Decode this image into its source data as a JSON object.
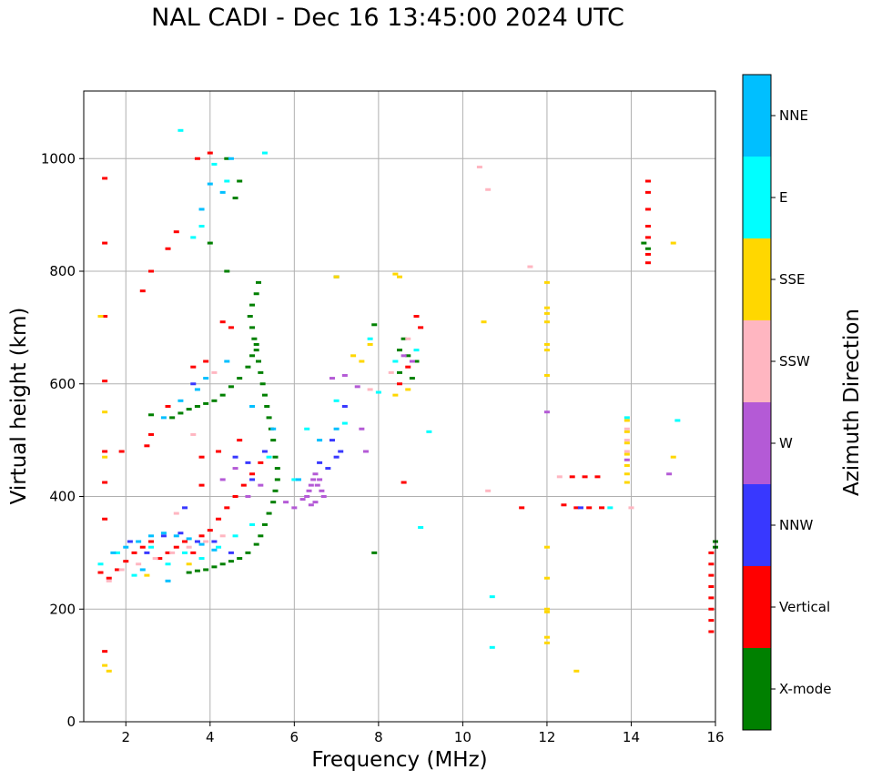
{
  "chart_data": {
    "type": "scatter",
    "title": "NAL CADI - Dec 16 13:45:00 2024 UTC",
    "xlabel": "Frequency (MHz)",
    "ylabel": "Virtual height (km)",
    "xlim": [
      1,
      16
    ],
    "ylim": [
      0,
      1120
    ],
    "xticks": [
      2,
      4,
      6,
      8,
      10,
      12,
      14,
      16
    ],
    "yticks": [
      0,
      200,
      400,
      600,
      800,
      1000
    ],
    "grid": true,
    "colorbar": {
      "label": "Azimuth Direction",
      "categories": [
        {
          "name": "X-mode",
          "color": "#008000"
        },
        {
          "name": "Vertical",
          "color": "#ff0000"
        },
        {
          "name": "NNW",
          "color": "#3838ff"
        },
        {
          "name": "W",
          "color": "#b45ad6"
        },
        {
          "name": "SSW",
          "color": "#ffb6c1"
        },
        {
          "name": "SSE",
          "color": "#ffd700"
        },
        {
          "name": "E",
          "color": "#00ffff"
        },
        {
          "name": "NNE",
          "color": "#00bfff"
        }
      ]
    },
    "series": [
      {
        "name": "X-mode",
        "color": "#008000",
        "points": [
          [
            3.5,
            265
          ],
          [
            3.7,
            268
          ],
          [
            3.9,
            270
          ],
          [
            4.1,
            275
          ],
          [
            4.3,
            280
          ],
          [
            4.5,
            285
          ],
          [
            4.7,
            290
          ],
          [
            4.9,
            300
          ],
          [
            5.1,
            315
          ],
          [
            5.2,
            330
          ],
          [
            5.3,
            350
          ],
          [
            5.4,
            370
          ],
          [
            5.5,
            390
          ],
          [
            5.55,
            410
          ],
          [
            5.6,
            430
          ],
          [
            5.6,
            450
          ],
          [
            5.55,
            470
          ],
          [
            5.5,
            500
          ],
          [
            5.45,
            520
          ],
          [
            5.4,
            540
          ],
          [
            5.35,
            560
          ],
          [
            5.3,
            580
          ],
          [
            5.25,
            600
          ],
          [
            5.2,
            620
          ],
          [
            5.15,
            640
          ],
          [
            5.1,
            660
          ],
          [
            5.05,
            680
          ],
          [
            5.0,
            700
          ],
          [
            4.95,
            720
          ],
          [
            5.0,
            740
          ],
          [
            5.1,
            760
          ],
          [
            5.15,
            780
          ],
          [
            3.1,
            540
          ],
          [
            3.3,
            548
          ],
          [
            3.5,
            555
          ],
          [
            3.7,
            560
          ],
          [
            3.9,
            565
          ],
          [
            4.1,
            570
          ],
          [
            4.3,
            580
          ],
          [
            4.5,
            595
          ],
          [
            4.7,
            610
          ],
          [
            4.9,
            630
          ],
          [
            5.0,
            650
          ],
          [
            5.1,
            670
          ],
          [
            4.6,
            930
          ],
          [
            4.7,
            960
          ],
          [
            4.4,
            1000
          ],
          [
            4.0,
            850
          ],
          [
            4.4,
            800
          ],
          [
            8.5,
            660
          ],
          [
            8.7,
            650
          ],
          [
            8.9,
            640
          ],
          [
            8.5,
            620
          ],
          [
            8.8,
            610
          ],
          [
            8.6,
            680
          ],
          [
            14.3,
            850
          ],
          [
            14.4,
            840
          ],
          [
            16,
            320
          ],
          [
            16,
            310
          ],
          [
            7.0,
            790
          ],
          [
            7.9,
            705
          ],
          [
            7.9,
            300
          ],
          [
            2.6,
            545
          ]
        ]
      },
      {
        "name": "Vertical",
        "color": "#ff0000",
        "points": [
          [
            1.4,
            265
          ],
          [
            1.6,
            255
          ],
          [
            1.8,
            270
          ],
          [
            2.0,
            285
          ],
          [
            2.2,
            300
          ],
          [
            2.4,
            310
          ],
          [
            2.6,
            320
          ],
          [
            2.8,
            290
          ],
          [
            3.0,
            300
          ],
          [
            3.2,
            310
          ],
          [
            3.4,
            320
          ],
          [
            3.6,
            300
          ],
          [
            3.8,
            330
          ],
          [
            4.0,
            340
          ],
          [
            4.2,
            360
          ],
          [
            4.4,
            380
          ],
          [
            4.6,
            400
          ],
          [
            4.8,
            420
          ],
          [
            5.0,
            440
          ],
          [
            5.2,
            460
          ],
          [
            3.8,
            420
          ],
          [
            4.2,
            480
          ],
          [
            4.7,
            500
          ],
          [
            3.8,
            470
          ],
          [
            4.5,
            700
          ],
          [
            4.3,
            710
          ],
          [
            3.9,
            640
          ],
          [
            3.6,
            630
          ],
          [
            3.0,
            560
          ],
          [
            2.6,
            510
          ],
          [
            2.5,
            490
          ],
          [
            1.9,
            480
          ],
          [
            1.5,
            965
          ],
          [
            1.5,
            850
          ],
          [
            1.5,
            720
          ],
          [
            1.5,
            605
          ],
          [
            1.5,
            480
          ],
          [
            1.5,
            425
          ],
          [
            1.5,
            360
          ],
          [
            1.5,
            125
          ],
          [
            2.4,
            765
          ],
          [
            2.6,
            800
          ],
          [
            3.0,
            840
          ],
          [
            3.2,
            870
          ],
          [
            4.0,
            1010
          ],
          [
            3.7,
            1000
          ],
          [
            8.9,
            720
          ],
          [
            9.0,
            700
          ],
          [
            8.7,
            630
          ],
          [
            8.5,
            600
          ],
          [
            8.6,
            425
          ],
          [
            11.4,
            380
          ],
          [
            12.4,
            385
          ],
          [
            12.7,
            380
          ],
          [
            13.0,
            380
          ],
          [
            13.3,
            380
          ],
          [
            12.6,
            435
          ],
          [
            12.9,
            435
          ],
          [
            13.2,
            435
          ],
          [
            14.4,
            960
          ],
          [
            14.4,
            940
          ],
          [
            14.4,
            910
          ],
          [
            14.4,
            880
          ],
          [
            14.4,
            860
          ],
          [
            14.4,
            830
          ],
          [
            14.4,
            815
          ],
          [
            15.9,
            300
          ],
          [
            15.9,
            280
          ],
          [
            15.9,
            260
          ],
          [
            15.9,
            240
          ],
          [
            15.9,
            220
          ],
          [
            15.9,
            200
          ],
          [
            15.9,
            180
          ],
          [
            15.9,
            160
          ]
        ]
      },
      {
        "name": "NNW",
        "color": "#3838ff",
        "points": [
          [
            2.1,
            320
          ],
          [
            2.5,
            300
          ],
          [
            2.9,
            330
          ],
          [
            3.3,
            335
          ],
          [
            3.7,
            320
          ],
          [
            4.1,
            320
          ],
          [
            4.5,
            300
          ],
          [
            5.0,
            430
          ],
          [
            4.9,
            460
          ],
          [
            5.3,
            480
          ],
          [
            4.6,
            470
          ],
          [
            3.6,
            600
          ],
          [
            3.4,
            380
          ],
          [
            6.6,
            460
          ],
          [
            6.8,
            450
          ],
          [
            7.0,
            470
          ],
          [
            7.1,
            480
          ],
          [
            6.9,
            500
          ],
          [
            7.2,
            560
          ],
          [
            12.8,
            380
          ]
        ]
      },
      {
        "name": "W",
        "color": "#b45ad6",
        "points": [
          [
            4.3,
            430
          ],
          [
            4.6,
            450
          ],
          [
            4.9,
            400
          ],
          [
            5.2,
            420
          ],
          [
            5.8,
            390
          ],
          [
            6.0,
            380
          ],
          [
            6.2,
            395
          ],
          [
            6.3,
            400
          ],
          [
            6.35,
            410
          ],
          [
            6.4,
            420
          ],
          [
            6.45,
            430
          ],
          [
            6.5,
            440
          ],
          [
            6.55,
            420
          ],
          [
            6.6,
            430
          ],
          [
            6.65,
            410
          ],
          [
            6.7,
            400
          ],
          [
            6.5,
            390
          ],
          [
            6.4,
            385
          ],
          [
            6.9,
            610
          ],
          [
            7.2,
            615
          ],
          [
            7.5,
            595
          ],
          [
            7.6,
            520
          ],
          [
            7.7,
            480
          ],
          [
            8.6,
            650
          ],
          [
            8.8,
            640
          ],
          [
            12.0,
            550
          ],
          [
            13.9,
            465
          ],
          [
            14.9,
            440
          ]
        ]
      },
      {
        "name": "SSW",
        "color": "#ffb6c1",
        "points": [
          [
            1.6,
            250
          ],
          [
            1.9,
            270
          ],
          [
            2.3,
            280
          ],
          [
            2.7,
            290
          ],
          [
            3.1,
            300
          ],
          [
            3.5,
            310
          ],
          [
            3.9,
            320
          ],
          [
            4.3,
            330
          ],
          [
            3.2,
            370
          ],
          [
            3.6,
            510
          ],
          [
            4.1,
            620
          ],
          [
            7.8,
            590
          ],
          [
            8.3,
            620
          ],
          [
            8.7,
            680
          ],
          [
            10.4,
            985
          ],
          [
            10.6,
            945
          ],
          [
            10.6,
            410
          ],
          [
            11.6,
            808
          ],
          [
            12.3,
            435
          ],
          [
            14.0,
            380
          ],
          [
            13.9,
            520
          ],
          [
            13.9,
            500
          ],
          [
            13.9,
            480
          ]
        ]
      },
      {
        "name": "SSE",
        "color": "#ffd700",
        "points": [
          [
            1.4,
            720
          ],
          [
            1.5,
            550
          ],
          [
            1.5,
            470
          ],
          [
            1.5,
            100
          ],
          [
            1.6,
            90
          ],
          [
            2.5,
            260
          ],
          [
            3.5,
            280
          ],
          [
            7.0,
            790
          ],
          [
            7.4,
            650
          ],
          [
            7.6,
            640
          ],
          [
            7.8,
            670
          ],
          [
            8.4,
            795
          ],
          [
            8.5,
            790
          ],
          [
            8.4,
            580
          ],
          [
            8.7,
            590
          ],
          [
            10.5,
            710
          ],
          [
            12.0,
            780
          ],
          [
            12.0,
            735
          ],
          [
            12.0,
            725
          ],
          [
            12.0,
            710
          ],
          [
            12.0,
            670
          ],
          [
            12.0,
            660
          ],
          [
            12.0,
            615
          ],
          [
            12.0,
            310
          ],
          [
            12.0,
            255
          ],
          [
            12.0,
            200
          ],
          [
            12.0,
            195
          ],
          [
            12.0,
            150
          ],
          [
            12.0,
            140
          ],
          [
            12.7,
            90
          ],
          [
            13.9,
            535
          ],
          [
            13.9,
            515
          ],
          [
            13.9,
            495
          ],
          [
            13.9,
            475
          ],
          [
            13.9,
            455
          ],
          [
            13.9,
            440
          ],
          [
            13.9,
            425
          ],
          [
            15.0,
            470
          ],
          [
            15.0,
            850
          ]
        ]
      },
      {
        "name": "E",
        "color": "#00ffff",
        "points": [
          [
            1.4,
            280
          ],
          [
            1.8,
            300
          ],
          [
            2.2,
            260
          ],
          [
            2.6,
            310
          ],
          [
            3.0,
            280
          ],
          [
            3.4,
            300
          ],
          [
            3.8,
            290
          ],
          [
            4.2,
            310
          ],
          [
            4.6,
            330
          ],
          [
            5.0,
            350
          ],
          [
            5.4,
            470
          ],
          [
            6.0,
            430
          ],
          [
            6.3,
            520
          ],
          [
            7.0,
            570
          ],
          [
            7.2,
            530
          ],
          [
            7.8,
            680
          ],
          [
            8.0,
            585
          ],
          [
            3.3,
            1050
          ],
          [
            4.1,
            990
          ],
          [
            4.4,
            960
          ],
          [
            3.8,
            880
          ],
          [
            3.6,
            860
          ],
          [
            5.3,
            1010
          ],
          [
            8.4,
            640
          ],
          [
            8.9,
            660
          ],
          [
            9.2,
            515
          ],
          [
            9.0,
            345
          ],
          [
            10.7,
            222
          ],
          [
            10.7,
            132
          ],
          [
            13.5,
            380
          ],
          [
            13.9,
            540
          ],
          [
            15.1,
            535
          ]
        ]
      },
      {
        "name": "NNE",
        "color": "#00bfff",
        "points": [
          [
            1.7,
            300
          ],
          [
            2.0,
            310
          ],
          [
            2.3,
            320
          ],
          [
            2.6,
            330
          ],
          [
            2.9,
            335
          ],
          [
            3.2,
            330
          ],
          [
            3.5,
            325
          ],
          [
            3.8,
            315
          ],
          [
            4.1,
            305
          ],
          [
            2.4,
            270
          ],
          [
            3.0,
            250
          ],
          [
            2.9,
            540
          ],
          [
            3.3,
            570
          ],
          [
            3.7,
            590
          ],
          [
            3.9,
            610
          ],
          [
            4.4,
            640
          ],
          [
            5.0,
            560
          ],
          [
            3.8,
            910
          ],
          [
            4.0,
            955
          ],
          [
            4.3,
            940
          ],
          [
            4.5,
            1000
          ],
          [
            5.5,
            520
          ],
          [
            6.1,
            430
          ],
          [
            6.6,
            500
          ],
          [
            7.0,
            520
          ]
        ]
      }
    ]
  }
}
